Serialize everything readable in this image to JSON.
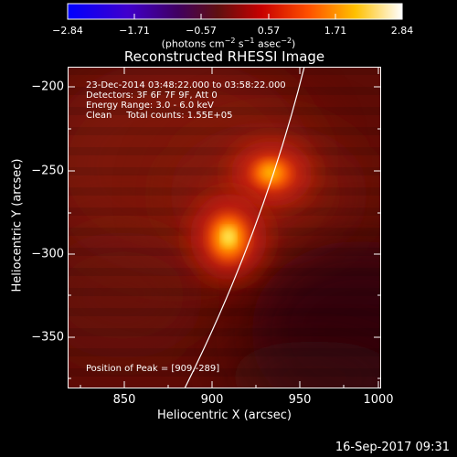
{
  "colorbar": {
    "ticks": [
      "−2.84",
      "−1.71",
      "−0.57",
      "0.57",
      "1.71",
      "2.84"
    ],
    "units_prefix": "(photons cm",
    "units_exp1": "−2",
    "units_mid": " s",
    "units_exp2": "−1",
    "units_mid2": " asec",
    "units_exp3": "−2",
    "units_suffix": ")"
  },
  "plot": {
    "title": "Reconstructed RHESSI Image",
    "ylabel": "Heliocentric Y (arcsec)",
    "xlabel": "Heliocentric X (arcsec)",
    "yticks": [
      "−200",
      "−250",
      "−300",
      "−350"
    ],
    "xticks": [
      "850",
      "900",
      "950",
      "1000"
    ],
    "info_line1": "23-Dec-2014 03:48:22.000 to 03:58:22.000",
    "info_line2": "Detectors: 3F 6F 7F 9F, Att 0",
    "info_line3": "Energy Range: 3.0 - 6.0 keV",
    "info_line4": "Clean     Total counts: 1.55E+05",
    "peak_text": "Position of Peak = [909,-289]"
  },
  "footer": {
    "timestamp": "16-Sep-2017 09:31"
  }
}
